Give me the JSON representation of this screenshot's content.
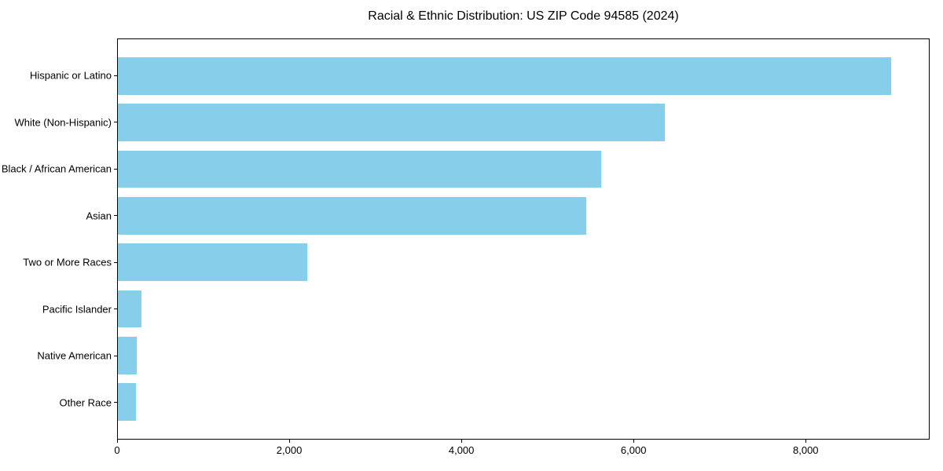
{
  "title": "Racial & Ethnic Distribution: US ZIP Code 94585 (2024)",
  "colors": {
    "bar": "#87CEEB",
    "axis": "#000000",
    "text": "#000000",
    "background": "#ffffff"
  },
  "chart_data": {
    "type": "bar",
    "orientation": "horizontal",
    "title": "Racial & Ethnic Distribution: US ZIP Code 94585 (2024)",
    "categories": [
      "Hispanic or Latino",
      "White (Non-Hispanic)",
      "Black / African American",
      "Asian",
      "Two or More Races",
      "Pacific Islander",
      "Native American",
      "Other Race"
    ],
    "values": [
      9000,
      6370,
      5625,
      5450,
      2200,
      275,
      220,
      210
    ],
    "xlabel": "",
    "ylabel": "",
    "xlim": [
      0,
      9440
    ],
    "xticks": {
      "values": [
        0,
        2000,
        4000,
        6000,
        8000
      ],
      "labels": [
        "0",
        "2,000",
        "4,000",
        "6,000",
        "8,000"
      ]
    },
    "bar_color": "#87CEEB",
    "bar_height_fraction": 0.8,
    "grid": false,
    "legend": null
  }
}
